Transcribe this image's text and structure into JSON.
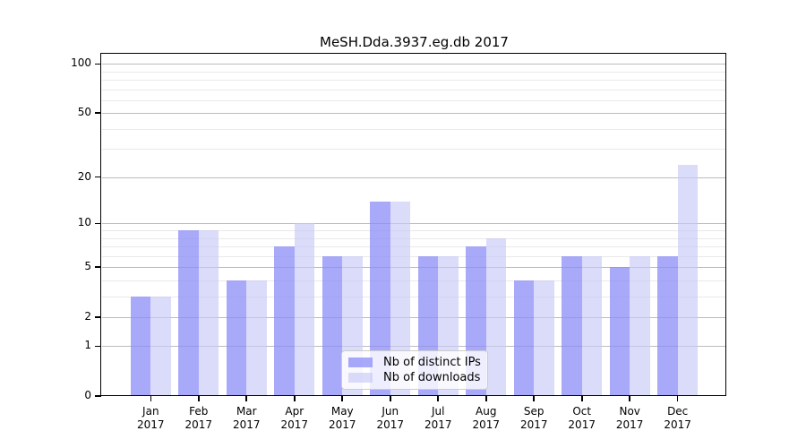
{
  "title": "MeSH.Dda.3937.eg.db 2017",
  "chart_data": {
    "type": "bar",
    "title": "MeSH.Dda.3937.eg.db 2017",
    "categories": [
      "Jan",
      "Feb",
      "Mar",
      "Apr",
      "May",
      "Jun",
      "Jul",
      "Aug",
      "Sep",
      "Oct",
      "Nov",
      "Dec"
    ],
    "year": "2017",
    "series": [
      {
        "name": "Nb of distinct IPs",
        "color": "rgba(140,140,248,0.75)",
        "values": [
          3,
          9,
          4,
          7,
          6,
          14,
          6,
          7,
          4,
          6,
          5,
          6
        ]
      },
      {
        "name": "Nb of downloads",
        "color": "rgba(200,200,247,0.65)",
        "values": [
          3,
          9,
          4,
          10,
          6,
          14,
          6,
          8,
          4,
          6,
          6,
          24
        ]
      }
    ],
    "xlabel": "",
    "ylabel": "",
    "yscale": "log1p",
    "ylim": [
      0,
      114
    ],
    "yticks_major": [
      0,
      1,
      2,
      5,
      10,
      20,
      50,
      100
    ],
    "yticks_minor": [
      3,
      4,
      6,
      7,
      8,
      9,
      30,
      40,
      60,
      70,
      80,
      90
    ],
    "grid": true,
    "legend_position": "lower center"
  },
  "colors": {
    "background": "#ffffff",
    "spine": "#000000",
    "grid_major": "#bcbcbc",
    "grid_minor": "#e9e9e9",
    "text": "#000000",
    "legend_border": "#cccccc",
    "legend_bg": "rgba(255,255,255,0.8)"
  }
}
